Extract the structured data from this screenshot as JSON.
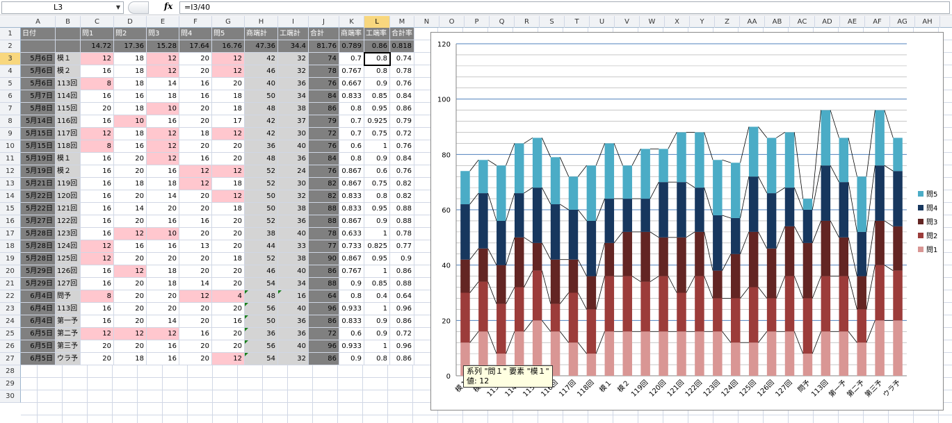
{
  "formula_bar": {
    "name_box": "L3",
    "fx": "fx",
    "formula": "=I3/40"
  },
  "columns": [
    "A",
    "B",
    "C",
    "D",
    "E",
    "F",
    "G",
    "H",
    "I",
    "J",
    "K",
    "L",
    "M",
    "N",
    "O",
    "P",
    "Q",
    "R",
    "S",
    "T",
    "U",
    "V",
    "W",
    "X",
    "Y",
    "Z",
    "AA",
    "AB",
    "AC",
    "AD",
    "AE",
    "AF",
    "AG",
    "AH"
  ],
  "selected_column": "L",
  "selected_row": 3,
  "rows": [
    "1",
    "2",
    "3",
    "4",
    "5",
    "6",
    "7",
    "8",
    "9",
    "10",
    "11",
    "12",
    "13",
    "14",
    "15",
    "16",
    "17",
    "18",
    "19",
    "20",
    "21",
    "22",
    "23",
    "24",
    "25",
    "26",
    "27",
    "28",
    "29",
    "30"
  ],
  "table": {
    "header": [
      "日付",
      "",
      "問1",
      "問2",
      "問3",
      "問4",
      "問5",
      "商端計",
      "工端計",
      "合計",
      "商端率",
      "工端率",
      "合計率"
    ],
    "row2": [
      "",
      "",
      "14.72",
      "17.36",
      "15.28",
      "17.64",
      "16.76",
      "47.36",
      "34.4",
      "81.76",
      "0.789",
      "0.86",
      "0.818"
    ],
    "rows": [
      [
        "5月6日",
        "模１",
        "12",
        "18",
        "12",
        "20",
        "12",
        "42",
        "32",
        "74",
        "0.7",
        "0.8",
        "0.74"
      ],
      [
        "5月6日",
        "模２",
        "16",
        "18",
        "12",
        "20",
        "12",
        "46",
        "32",
        "78",
        "0.767",
        "0.8",
        "0.78"
      ],
      [
        "5月6日",
        "113回",
        "8",
        "18",
        "14",
        "16",
        "20",
        "40",
        "36",
        "76",
        "0.667",
        "0.9",
        "0.76"
      ],
      [
        "5月7日",
        "114回",
        "16",
        "16",
        "18",
        "16",
        "18",
        "50",
        "34",
        "84",
        "0.833",
        "0.85",
        "0.84"
      ],
      [
        "5月8日",
        "115回",
        "20",
        "18",
        "10",
        "20",
        "18",
        "48",
        "38",
        "86",
        "0.8",
        "0.95",
        "0.86"
      ],
      [
        "5月14日",
        "116回",
        "16",
        "10",
        "16",
        "20",
        "17",
        "42",
        "37",
        "79",
        "0.7",
        "0.925",
        "0.79"
      ],
      [
        "5月15日",
        "117回",
        "12",
        "18",
        "12",
        "18",
        "12",
        "42",
        "30",
        "72",
        "0.7",
        "0.75",
        "0.72"
      ],
      [
        "5月15日",
        "118回",
        "8",
        "16",
        "12",
        "20",
        "20",
        "36",
        "40",
        "76",
        "0.6",
        "1",
        "0.76"
      ],
      [
        "5月19日",
        "模１",
        "16",
        "20",
        "12",
        "16",
        "20",
        "48",
        "36",
        "84",
        "0.8",
        "0.9",
        "0.84"
      ],
      [
        "5月19日",
        "模２",
        "16",
        "20",
        "16",
        "12",
        "12",
        "52",
        "24",
        "76",
        "0.867",
        "0.6",
        "0.76"
      ],
      [
        "5月21日",
        "119回",
        "16",
        "18",
        "18",
        "12",
        "18",
        "52",
        "30",
        "82",
        "0.867",
        "0.75",
        "0.82"
      ],
      [
        "5月22日",
        "120回",
        "16",
        "20",
        "14",
        "20",
        "12",
        "50",
        "32",
        "82",
        "0.833",
        "0.8",
        "0.82"
      ],
      [
        "5月22日",
        "121回",
        "16",
        "14",
        "20",
        "20",
        "18",
        "50",
        "38",
        "88",
        "0.833",
        "0.95",
        "0.88"
      ],
      [
        "5月27日",
        "122回",
        "16",
        "20",
        "16",
        "16",
        "20",
        "52",
        "36",
        "88",
        "0.867",
        "0.9",
        "0.88"
      ],
      [
        "5月28日",
        "123回",
        "16",
        "12",
        "10",
        "20",
        "20",
        "38",
        "40",
        "78",
        "0.633",
        "1",
        "0.78"
      ],
      [
        "5月28日",
        "124回",
        "12",
        "16",
        "16",
        "13",
        "20",
        "44",
        "33",
        "77",
        "0.733",
        "0.825",
        "0.77"
      ],
      [
        "5月28日",
        "125回",
        "12",
        "20",
        "20",
        "20",
        "18",
        "52",
        "38",
        "90",
        "0.867",
        "0.95",
        "0.9"
      ],
      [
        "5月29日",
        "126回",
        "16",
        "12",
        "18",
        "20",
        "20",
        "46",
        "40",
        "86",
        "0.767",
        "1",
        "0.86"
      ],
      [
        "5月29日",
        "127回",
        "16",
        "20",
        "18",
        "14",
        "20",
        "54",
        "34",
        "88",
        "0.9",
        "0.85",
        "0.88"
      ],
      [
        "6月4日",
        "問予",
        "8",
        "20",
        "20",
        "12",
        "4",
        "48",
        "16",
        "64",
        "0.8",
        "0.4",
        "0.64"
      ],
      [
        "6月4日",
        "113回",
        "16",
        "20",
        "20",
        "20",
        "20",
        "56",
        "40",
        "96",
        "0.933",
        "1",
        "0.96"
      ],
      [
        "6月4日",
        "第一予",
        "16",
        "20",
        "14",
        "20",
        "16",
        "50",
        "36",
        "86",
        "0.833",
        "0.9",
        "0.86"
      ],
      [
        "6月5日",
        "第二予",
        "12",
        "12",
        "12",
        "16",
        "20",
        "36",
        "36",
        "72",
        "0.6",
        "0.9",
        "0.72"
      ],
      [
        "6月5日",
        "第三予",
        "20",
        "20",
        "16",
        "20",
        "20",
        "56",
        "40",
        "96",
        "0.933",
        "1",
        "0.96"
      ],
      [
        "6月5日",
        "ウラ予",
        "20",
        "18",
        "16",
        "20",
        "12",
        "54",
        "32",
        "86",
        "0.9",
        "0.8",
        "0.86"
      ]
    ]
  },
  "chart_data": {
    "type": "bar",
    "stacked": true,
    "categories": [
      "模１",
      "模２",
      "113回",
      "114回",
      "115回",
      "116回",
      "117回",
      "118回",
      "模１",
      "模２",
      "119回",
      "120回",
      "121回",
      "122回",
      "123回",
      "124回",
      "125回",
      "126回",
      "127回",
      "問予",
      "113回",
      "第一予",
      "第二予",
      "第三予",
      "ウラ予"
    ],
    "series": [
      {
        "name": "問1",
        "color": "#d99694",
        "values": [
          12,
          16,
          8,
          16,
          20,
          16,
          12,
          8,
          16,
          16,
          16,
          16,
          16,
          16,
          16,
          12,
          12,
          16,
          16,
          8,
          16,
          16,
          12,
          20,
          20
        ]
      },
      {
        "name": "問2",
        "color": "#9c3c3a",
        "values": [
          18,
          18,
          18,
          16,
          18,
          10,
          18,
          16,
          20,
          20,
          18,
          20,
          14,
          20,
          12,
          16,
          20,
          12,
          20,
          20,
          20,
          20,
          12,
          20,
          18
        ]
      },
      {
        "name": "問3",
        "color": "#632523",
        "values": [
          12,
          12,
          14,
          18,
          10,
          16,
          12,
          12,
          12,
          16,
          18,
          14,
          20,
          16,
          10,
          16,
          20,
          18,
          18,
          20,
          20,
          14,
          12,
          16,
          16
        ]
      },
      {
        "name": "問4",
        "color": "#17375e",
        "values": [
          20,
          20,
          16,
          16,
          20,
          20,
          18,
          20,
          16,
          12,
          12,
          20,
          20,
          16,
          20,
          13,
          20,
          20,
          14,
          12,
          20,
          20,
          16,
          20,
          20
        ]
      },
      {
        "name": "問5",
        "color": "#4bacc6",
        "values": [
          12,
          12,
          20,
          18,
          18,
          17,
          12,
          20,
          20,
          12,
          18,
          12,
          18,
          20,
          20,
          20,
          18,
          20,
          20,
          4,
          20,
          16,
          20,
          20,
          12
        ]
      }
    ],
    "ylim": [
      0,
      120
    ],
    "yticks": [
      "0",
      "20",
      "40",
      "60",
      "80",
      "100",
      "120"
    ],
    "legend_position": "right",
    "gridlines": true,
    "series_lines": true
  },
  "tooltip": {
    "line1": "系列 \"問１\" 要素 \"模１\"",
    "line2": "値: 12"
  }
}
